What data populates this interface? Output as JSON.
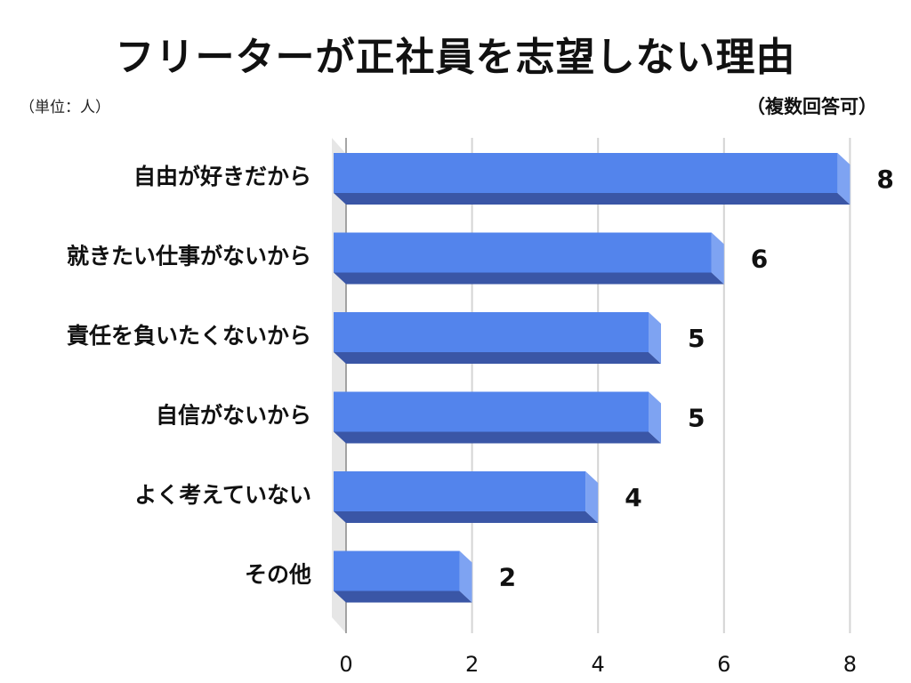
{
  "chart_data": {
    "type": "bar",
    "orientation": "horizontal",
    "title": "フリーターが正社員を志望しない理由",
    "unit_note": "（単位：人）",
    "note": "（複数回答可）",
    "categories": [
      "自由が好きだから",
      "就きたい仕事がないから",
      "責任を負いたくないから",
      "自信がないから",
      "よく考えていない",
      "その他"
    ],
    "values": [
      8,
      6,
      5,
      5,
      4,
      2
    ],
    "xlim": [
      0,
      8
    ],
    "xticks": [
      0,
      2,
      4,
      6,
      8
    ],
    "grid": true,
    "legend": "none",
    "colors": {
      "bar_face": "#5384ec",
      "bar_bottom": "#3a56a6",
      "bar_side": "#7ea3f2",
      "grid": "#d4d4d4",
      "wall": "#e6e6e6"
    }
  }
}
